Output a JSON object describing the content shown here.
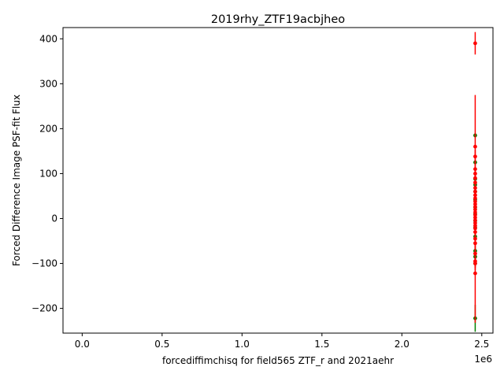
{
  "chart_data": {
    "type": "scatter",
    "title": "2019rhy_ZTF19acbjheo",
    "xlabel": "forcediffimchisq for field565 ZTF_r and 2021aehr",
    "ylabel": "Forced Difference Image PSF-fit Flux",
    "x_offset_label": "1e6",
    "xlim": [
      -120000,
      2570000
    ],
    "ylim": [
      -255,
      425
    ],
    "x_ticks": [
      0,
      500000,
      1000000,
      1500000,
      2000000,
      2500000
    ],
    "x_tick_labels": [
      "0.0",
      "0.5",
      "1.0",
      "1.5",
      "2.0",
      "2.5"
    ],
    "y_ticks": [
      -200,
      -100,
      0,
      100,
      200,
      300,
      400
    ],
    "y_tick_labels": [
      "−200",
      "−100",
      "0",
      "100",
      "200",
      "300",
      "400"
    ],
    "grid": false,
    "series": [
      {
        "color": "#008000",
        "points": [
          {
            "x": 2458800,
            "y": 185,
            "err": 5
          },
          {
            "x": 2458800,
            "y": 125,
            "err": 6
          },
          {
            "x": 2458800,
            "y": 88,
            "err": 8
          },
          {
            "x": 2458800,
            "y": 75,
            "err": 6
          },
          {
            "x": 2458800,
            "y": 60,
            "err": 8
          },
          {
            "x": 2458800,
            "y": 42,
            "err": 7
          },
          {
            "x": 2458800,
            "y": 25,
            "err": 8
          },
          {
            "x": 2458800,
            "y": 10,
            "err": 7
          },
          {
            "x": 2458800,
            "y": -5,
            "err": 8
          },
          {
            "x": 2458800,
            "y": -20,
            "err": 7
          },
          {
            "x": 2458800,
            "y": -40,
            "err": 8
          },
          {
            "x": 2458800,
            "y": -72,
            "err": 10
          },
          {
            "x": 2458800,
            "y": -85,
            "err": 8
          },
          {
            "x": 2458800,
            "y": -100,
            "err": 8
          },
          {
            "x": 2458800,
            "y": -222,
            "err": 30
          }
        ]
      },
      {
        "color": "#ff0000",
        "points": [
          {
            "x": 2458800,
            "y": 390,
            "err": 25
          },
          {
            "x": 2458800,
            "y": 160,
            "err": 115
          },
          {
            "x": 2458800,
            "y": 138,
            "err": 15
          },
          {
            "x": 2458800,
            "y": 110,
            "err": 15
          },
          {
            "x": 2458800,
            "y": 100,
            "err": 10
          },
          {
            "x": 2458800,
            "y": 90,
            "err": 10
          },
          {
            "x": 2458800,
            "y": 80,
            "err": 8
          },
          {
            "x": 2458800,
            "y": 68,
            "err": 8
          },
          {
            "x": 2458800,
            "y": 60,
            "err": 8
          },
          {
            "x": 2458800,
            "y": 52,
            "err": 6
          },
          {
            "x": 2458800,
            "y": 45,
            "err": 6
          },
          {
            "x": 2458800,
            "y": 38,
            "err": 6
          },
          {
            "x": 2458800,
            "y": 32,
            "err": 6
          },
          {
            "x": 2458800,
            "y": 26,
            "err": 6
          },
          {
            "x": 2458800,
            "y": 20,
            "err": 6
          },
          {
            "x": 2458800,
            "y": 14,
            "err": 6
          },
          {
            "x": 2458800,
            "y": 8,
            "err": 6
          },
          {
            "x": 2458800,
            "y": 2,
            "err": 6
          },
          {
            "x": 2458800,
            "y": -4,
            "err": 6
          },
          {
            "x": 2458800,
            "y": -10,
            "err": 6
          },
          {
            "x": 2458800,
            "y": -16,
            "err": 6
          },
          {
            "x": 2458800,
            "y": -22,
            "err": 6
          },
          {
            "x": 2458800,
            "y": -30,
            "err": 8
          },
          {
            "x": 2458800,
            "y": -45,
            "err": 8
          },
          {
            "x": 2458800,
            "y": -55,
            "err": 8
          },
          {
            "x": 2458800,
            "y": -78,
            "err": 20
          },
          {
            "x": 2458800,
            "y": -95,
            "err": 15
          },
          {
            "x": 2458800,
            "y": -100,
            "err": 15
          },
          {
            "x": 2458800,
            "y": -122,
            "err": 110
          }
        ]
      }
    ]
  }
}
